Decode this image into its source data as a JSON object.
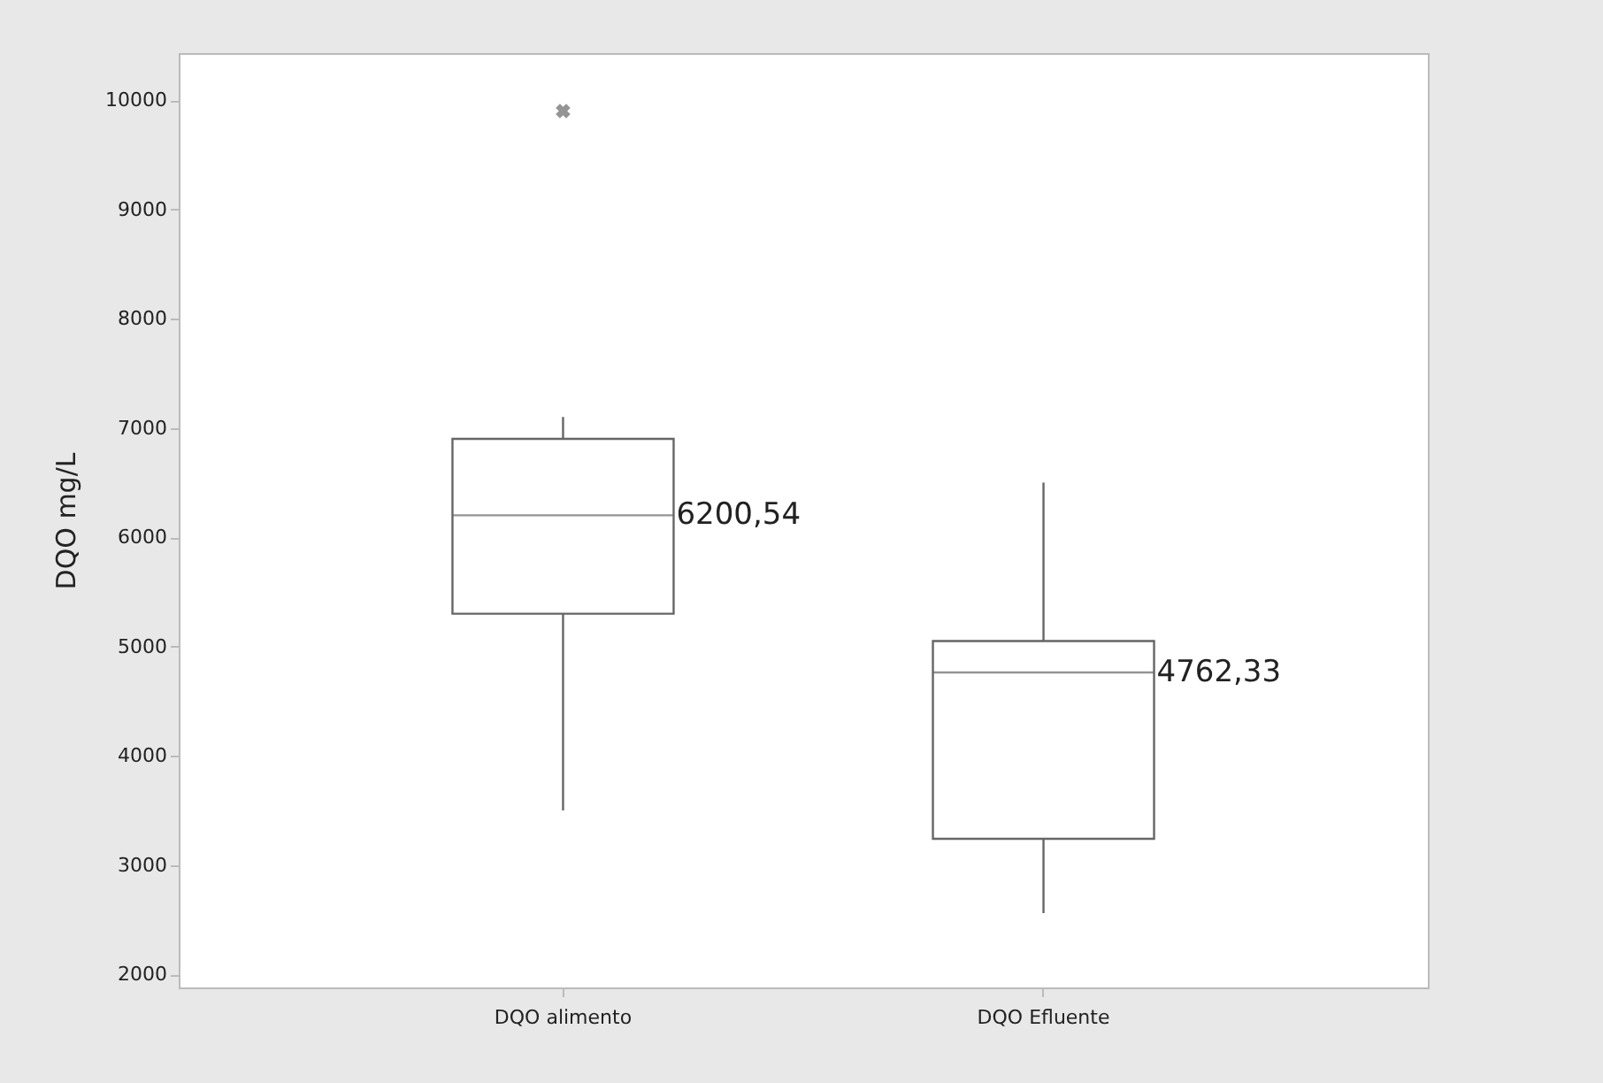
{
  "chart_data": {
    "type": "box",
    "ylabel": "DQO mg/L",
    "categories": [
      "DQO alimento",
      "DQO Efluente"
    ],
    "boxes": [
      {
        "low": 3500,
        "q1": 5300,
        "median": 6200.54,
        "q3": 6900,
        "high": 7100,
        "outliers": [
          9900
        ]
      },
      {
        "low": 2560,
        "q1": 3240,
        "median": 4762.33,
        "q3": 5050,
        "high": 6500
      }
    ],
    "ylim": [
      1880,
      10430
    ],
    "yticks": [
      2000,
      3000,
      4000,
      5000,
      6000,
      7000,
      8000,
      9000,
      10000
    ],
    "grid": false,
    "annotations": [
      "6200,54",
      "4762,33"
    ]
  }
}
